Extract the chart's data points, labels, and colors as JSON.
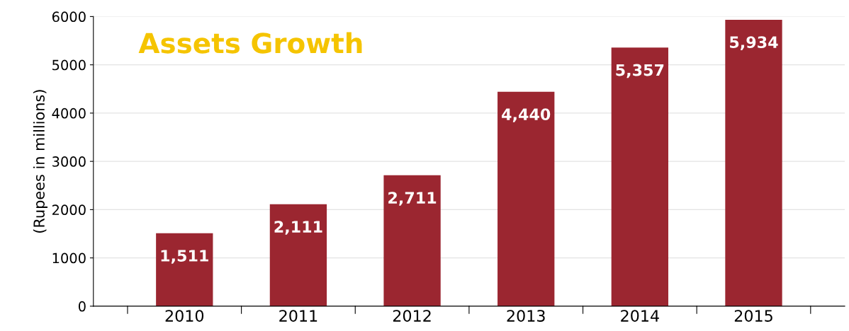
{
  "chart_data": {
    "type": "bar",
    "title": "Assets Growth",
    "ylabel": "(Rupees in millions)",
    "categories": [
      "2010",
      "2011",
      "2012",
      "2013",
      "2014",
      "2015"
    ],
    "values": [
      1511,
      2111,
      2711,
      4440,
      5357,
      5934
    ],
    "value_labels": [
      "1,511",
      "2,111",
      "2,711",
      "4,440",
      "5,357",
      "5,934"
    ],
    "color": "#9b2630",
    "ylim": [
      0,
      6000
    ],
    "yticks": [
      0,
      1000,
      2000,
      3000,
      4000,
      5000,
      6000
    ],
    "grid": "y"
  }
}
